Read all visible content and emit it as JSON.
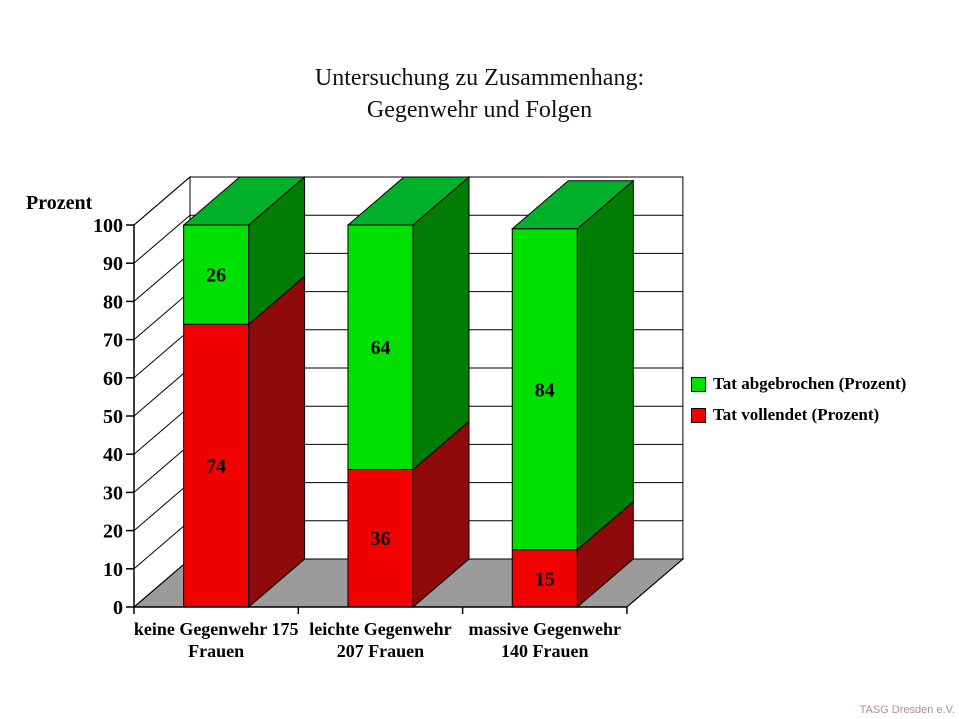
{
  "title": {
    "line1": "Untersuchung zu Zusammenhang:",
    "line2": "Gegenwehr und Folgen"
  },
  "ylabel_text": "Prozent",
  "credit": "TASG Dresden e.V.",
  "chart_data": {
    "type": "bar",
    "variant": "3d-stacked-column",
    "title": "Untersuchung zu Zusammenhang: Gegenwehr und Folgen",
    "xlabel": "",
    "ylabel": "Prozent",
    "ylim": [
      0,
      100
    ],
    "yticks": [
      0,
      10,
      20,
      30,
      40,
      50,
      60,
      70,
      80,
      90,
      100
    ],
    "grid": true,
    "legend_position": "right",
    "categories": [
      {
        "lines": [
          "keine Gegenwehr 175",
          "Frauen"
        ]
      },
      {
        "lines": [
          "leichte Gegenwehr",
          "207 Frauen"
        ]
      },
      {
        "lines": [
          "massive Gegenwehr",
          "140 Frauen"
        ]
      }
    ],
    "series": [
      {
        "name": "Tat vollendet (Prozent)",
        "values": [
          74,
          36,
          15
        ],
        "front_color": "#f20000",
        "side_color": "#8f0a0a",
        "top_color": "#b00000"
      },
      {
        "name": "Tat abgebrochen (Prozent)",
        "values": [
          26,
          64,
          84
        ],
        "front_color": "#00e000",
        "side_color": "#007d05",
        "top_color": "#00b02a"
      }
    ],
    "legend_order": [
      1,
      0
    ],
    "colors": {
      "floor": "#9b9b9b",
      "wall": "#ffffff",
      "grid_line": "#000000"
    }
  }
}
